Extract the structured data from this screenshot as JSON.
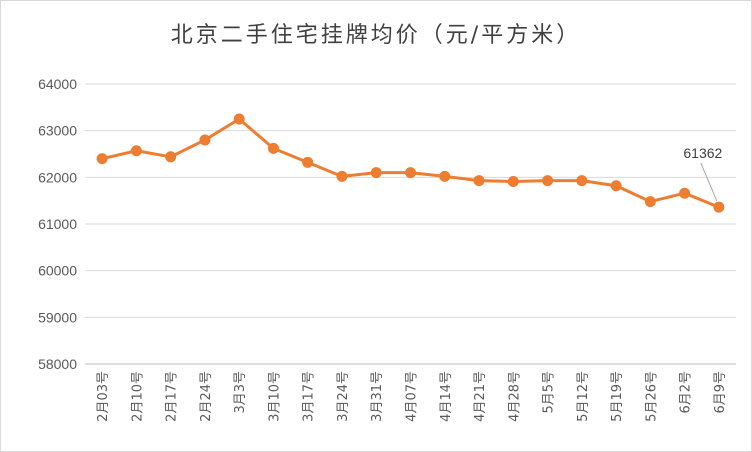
{
  "chart_data": {
    "type": "line",
    "title": "北京二手住宅挂牌均价（元/平方米）",
    "xlabel": "",
    "ylabel": "",
    "ylim": [
      58000,
      64000
    ],
    "yticks": [
      "58000",
      "59000",
      "60000",
      "61000",
      "62000",
      "63000",
      "64000"
    ],
    "grid": true,
    "categories": [
      "2月03号",
      "2月10号",
      "2月17号",
      "2月24号",
      "3月3号",
      "3月10号",
      "3月17号",
      "3月24号",
      "3月31号",
      "4月07号",
      "4月14号",
      "4月21号",
      "4月28号",
      "5月5号",
      "5月12号",
      "5月19号",
      "5月26号",
      "6月2号",
      "6月9号"
    ],
    "series": [
      {
        "values": [
          62400,
          62570,
          62440,
          62800,
          63250,
          62620,
          62320,
          62020,
          62100,
          62100,
          62020,
          61930,
          61910,
          61930,
          61930,
          61820,
          61480,
          61660,
          61362
        ],
        "color": "#ed7d31"
      }
    ],
    "annotations": [
      {
        "category": "6月9号",
        "text": "61362"
      }
    ]
  }
}
